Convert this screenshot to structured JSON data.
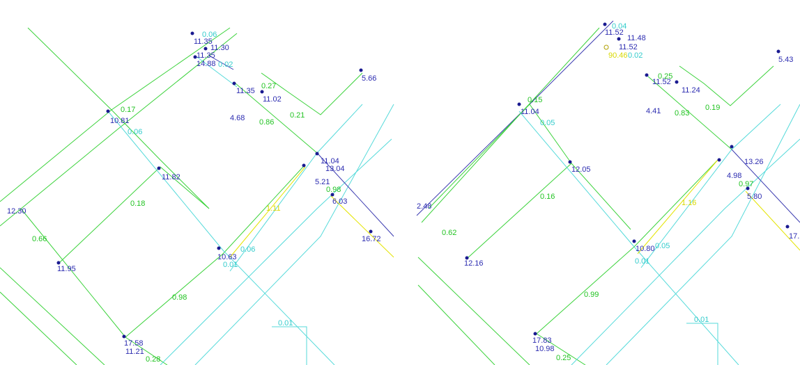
{
  "panels": [
    {
      "labels": [
        {
          "text": "0.06",
          "color": "#33cccc"
        },
        {
          "text": "11.35",
          "color": "#2b2bb0"
        },
        {
          "text": "11.30",
          "color": "#2b2bb0"
        },
        {
          "text": "11.35",
          "color": "#2b2bb0"
        },
        {
          "text": "14.88",
          "color": "#2b2bb0"
        },
        {
          "text": "0.02",
          "color": "#33cccc"
        },
        {
          "text": "0.27",
          "color": "#22c322"
        },
        {
          "text": "11.35",
          "color": "#2b2bb0"
        },
        {
          "text": "11.02",
          "color": "#2b2bb0"
        },
        {
          "text": "0.21",
          "color": "#22c322"
        },
        {
          "text": "0.86",
          "color": "#22c322"
        },
        {
          "text": "0.17",
          "color": "#22c322"
        },
        {
          "text": "10.81",
          "color": "#2b2bb0"
        },
        {
          "text": "0.06",
          "color": "#33cccc"
        },
        {
          "text": "11.82",
          "color": "#2b2bb0"
        },
        {
          "text": "12.30",
          "color": "#2b2bb0"
        },
        {
          "text": "0.18",
          "color": "#22c322"
        },
        {
          "text": "0.66",
          "color": "#22c322"
        },
        {
          "text": "11.95",
          "color": "#2b2bb0"
        },
        {
          "text": "10.63",
          "color": "#2b2bb0"
        },
        {
          "text": "0.06",
          "color": "#33cccc"
        },
        {
          "text": "0.01",
          "color": "#33cccc"
        },
        {
          "text": "0.98",
          "color": "#22c322"
        },
        {
          "text": "0.01",
          "color": "#33cccc"
        },
        {
          "text": "17.58",
          "color": "#2b2bb0"
        },
        {
          "text": "11.21",
          "color": "#2b2bb0"
        },
        {
          "text": "0.28",
          "color": "#22c322"
        },
        {
          "text": "1.11",
          "color": "#d8d800"
        },
        {
          "text": "11.04",
          "color": "#2b2bb0"
        },
        {
          "text": "13.04",
          "color": "#2b2bb0"
        },
        {
          "text": "5.21",
          "color": "#2b2bb0"
        },
        {
          "text": "0.98",
          "color": "#22c322"
        },
        {
          "text": "6.03",
          "color": "#2b2bb0"
        },
        {
          "text": "16.72",
          "color": "#2b2bb0"
        },
        {
          "text": "5.66",
          "color": "#2b2bb0"
        },
        {
          "text": "4.68",
          "color": "#2b2bb0"
        }
      ]
    },
    {
      "labels": [
        {
          "text": "0.04",
          "color": "#33cccc"
        },
        {
          "text": "11.52",
          "color": "#2b2bb0"
        },
        {
          "text": "11.48",
          "color": "#2b2bb0"
        },
        {
          "text": "11.52",
          "color": "#2b2bb0"
        },
        {
          "text": "90.46",
          "color": "#d8d800"
        },
        {
          "text": "0.02",
          "color": "#33cccc"
        },
        {
          "text": "5.43",
          "color": "#2b2bb0"
        },
        {
          "text": "0.25",
          "color": "#22c322"
        },
        {
          "text": "11.52",
          "color": "#2b2bb0"
        },
        {
          "text": "11.24",
          "color": "#2b2bb0"
        },
        {
          "text": "0.83",
          "color": "#22c322"
        },
        {
          "text": "0.19",
          "color": "#22c322"
        },
        {
          "text": "0.15",
          "color": "#22c322"
        },
        {
          "text": "11.04",
          "color": "#2b2bb0"
        },
        {
          "text": "0.05",
          "color": "#33cccc"
        },
        {
          "text": "12.05",
          "color": "#2b2bb0"
        },
        {
          "text": "0.16",
          "color": "#22c322"
        },
        {
          "text": "2.48",
          "color": "#2b2bb0"
        },
        {
          "text": "0.62",
          "color": "#22c322"
        },
        {
          "text": "12.16",
          "color": "#2b2bb0"
        },
        {
          "text": "1.16",
          "color": "#d8d800"
        },
        {
          "text": "10.80",
          "color": "#2b2bb0"
        },
        {
          "text": "0.05",
          "color": "#33cccc"
        },
        {
          "text": "0.01",
          "color": "#33cccc"
        },
        {
          "text": "0.99",
          "color": "#22c322"
        },
        {
          "text": "0.01",
          "color": "#33cccc"
        },
        {
          "text": "17.83",
          "color": "#2b2bb0"
        },
        {
          "text": "10.98",
          "color": "#2b2bb0"
        },
        {
          "text": "0.25",
          "color": "#22c322"
        },
        {
          "text": "13.26",
          "color": "#2b2bb0"
        },
        {
          "text": "4.98",
          "color": "#2b2bb0"
        },
        {
          "text": "0.97",
          "color": "#22c322"
        },
        {
          "text": "5.80",
          "color": "#2b2bb0"
        },
        {
          "text": "4.41",
          "color": "#2b2bb0"
        },
        {
          "text": "17.",
          "color": "#2b2bb0"
        }
      ]
    }
  ]
}
